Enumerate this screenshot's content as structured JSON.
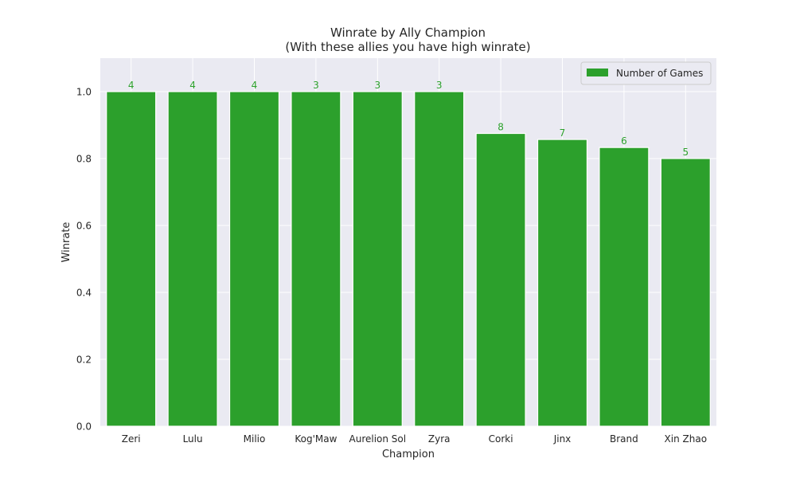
{
  "chart_data": {
    "type": "bar",
    "title": "Winrate by Ally Champion",
    "subtitle": "(With these allies you have high winrate)",
    "xlabel": "Champion",
    "ylabel": "Winrate",
    "categories": [
      "Zeri",
      "Lulu",
      "Milio",
      "Kog'Maw",
      "Aurelion Sol",
      "Zyra",
      "Corki",
      "Jinx",
      "Brand",
      "Xin Zhao"
    ],
    "series": [
      {
        "name": "Number of Games",
        "values": [
          1.0,
          1.0,
          1.0,
          1.0,
          1.0,
          1.0,
          0.875,
          0.857,
          0.833,
          0.8
        ],
        "data_labels": [
          "4",
          "4",
          "4",
          "3",
          "3",
          "3",
          "8",
          "7",
          "6",
          "5"
        ],
        "color": "#2ca02c"
      }
    ],
    "ylim": [
      0,
      1.1
    ],
    "yticks": [
      "0.0",
      "0.2",
      "0.4",
      "0.6",
      "0.8",
      "1.0"
    ],
    "grid": true,
    "legend_position": "top-right",
    "colors": {
      "plot_background": "#eaeaf2",
      "grid": "#ffffff",
      "bar": "#2ca02c",
      "label": "#2ca02c"
    }
  }
}
